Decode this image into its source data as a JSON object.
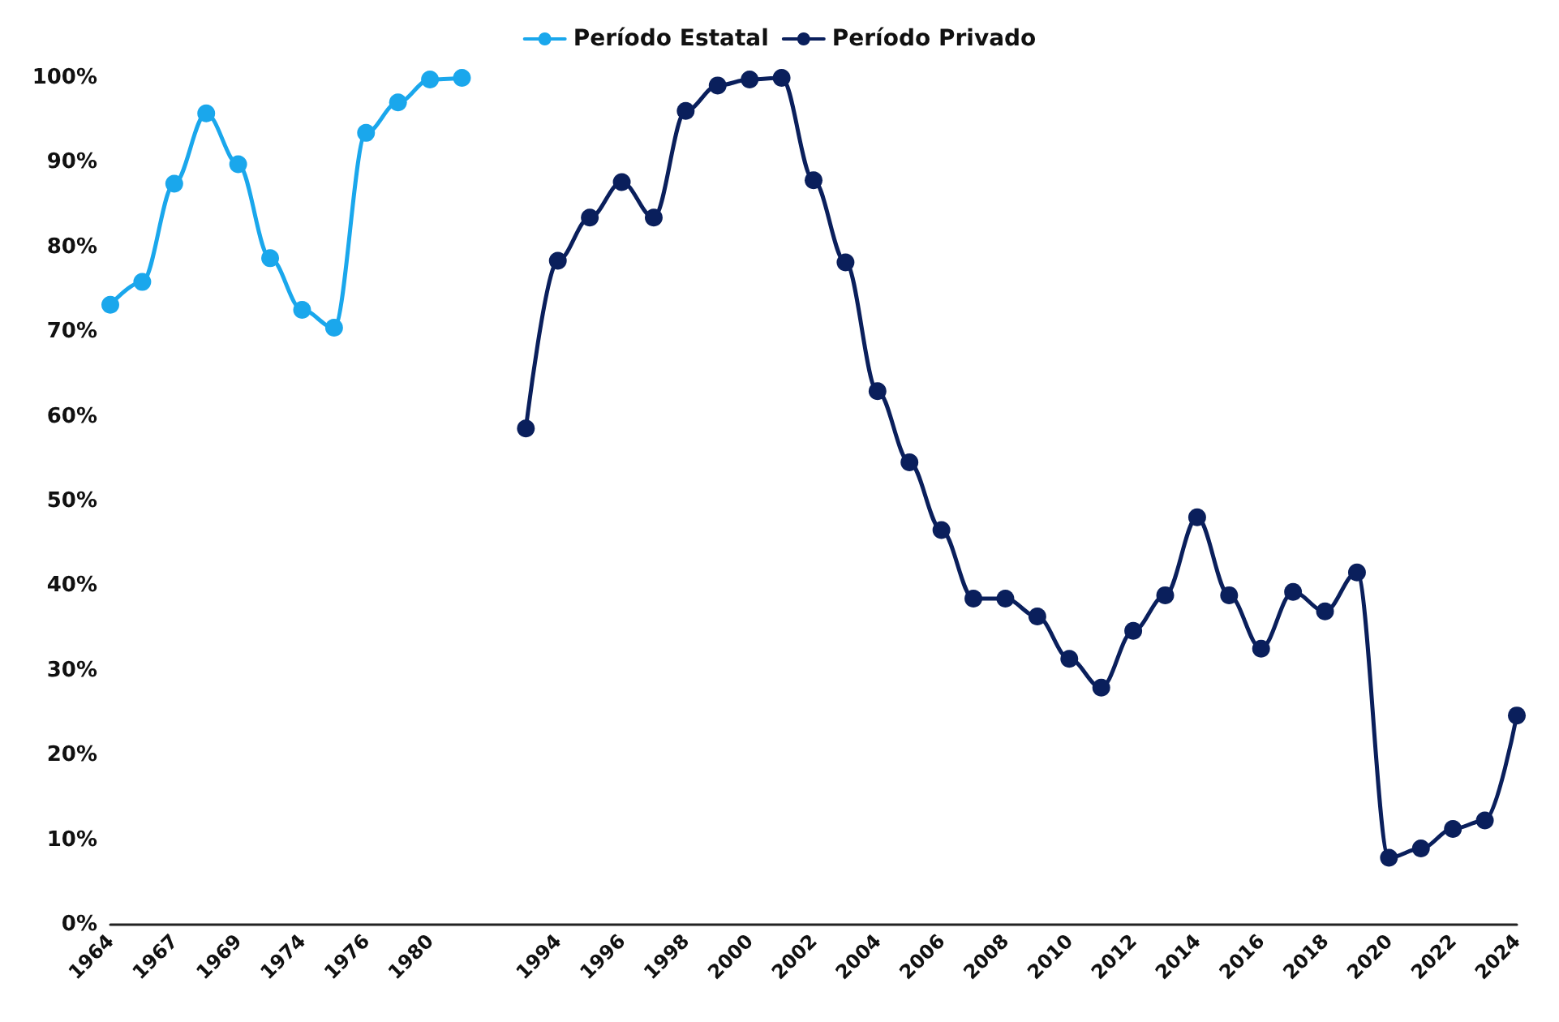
{
  "chart_data": {
    "type": "line",
    "categories": [
      "1964",
      null,
      "1967",
      null,
      "1969",
      null,
      "1974",
      null,
      "1976",
      null,
      "1980",
      null,
      null,
      null,
      "1994",
      null,
      "1996",
      null,
      "1998",
      null,
      "2000",
      null,
      "2002",
      null,
      "2004",
      null,
      "2006",
      null,
      "2008",
      null,
      "2010",
      null,
      "2012",
      null,
      "2014",
      null,
      "2016",
      null,
      "2018",
      null,
      "2020",
      null,
      "2022",
      null,
      "2024"
    ],
    "series": [
      {
        "name": "Período Estatal",
        "color": "#1aa7ec",
        "values": [
          73.2,
          75.9,
          87.5,
          95.8,
          89.8,
          78.7,
          72.6,
          70.5,
          93.5,
          97.1,
          99.8,
          100,
          null,
          null,
          null,
          null,
          null,
          null,
          null,
          null,
          null,
          null,
          null,
          null,
          null,
          null,
          null,
          null,
          null,
          null,
          null,
          null,
          null,
          null,
          null,
          null,
          null,
          null,
          null,
          null,
          null,
          null,
          null,
          null,
          null
        ]
      },
      {
        "name": "Período Privado",
        "color": "#0a1f5c",
        "values": [
          null,
          null,
          null,
          null,
          null,
          null,
          null,
          null,
          null,
          null,
          null,
          null,
          null,
          58.6,
          78.4,
          83.5,
          87.7,
          83.5,
          96.1,
          99.1,
          99.8,
          100,
          87.9,
          78.2,
          63,
          54.6,
          46.6,
          38.5,
          38.5,
          36.4,
          31.4,
          28,
          34.7,
          38.9,
          48.1,
          38.9,
          32.6,
          39.3,
          37,
          41.6,
          7.9,
          9,
          11.3,
          12.3,
          24.7
        ]
      }
    ],
    "ylim": [
      0,
      100
    ],
    "yticks": [
      {
        "value": 0,
        "label": "0%"
      },
      {
        "value": 10,
        "label": "10%"
      },
      {
        "value": 20,
        "label": "20%"
      },
      {
        "value": 30,
        "label": "30%"
      },
      {
        "value": 40,
        "label": "40%"
      },
      {
        "value": 50,
        "label": "50%"
      },
      {
        "value": 60,
        "label": "60%"
      },
      {
        "value": 70,
        "label": "70%"
      },
      {
        "value": 80,
        "label": "80%"
      },
      {
        "value": 90,
        "label": "90%"
      },
      {
        "value": 100,
        "label": "100%"
      }
    ],
    "grid": false,
    "legend": "top",
    "marker": "circle",
    "line_style": "solid"
  }
}
